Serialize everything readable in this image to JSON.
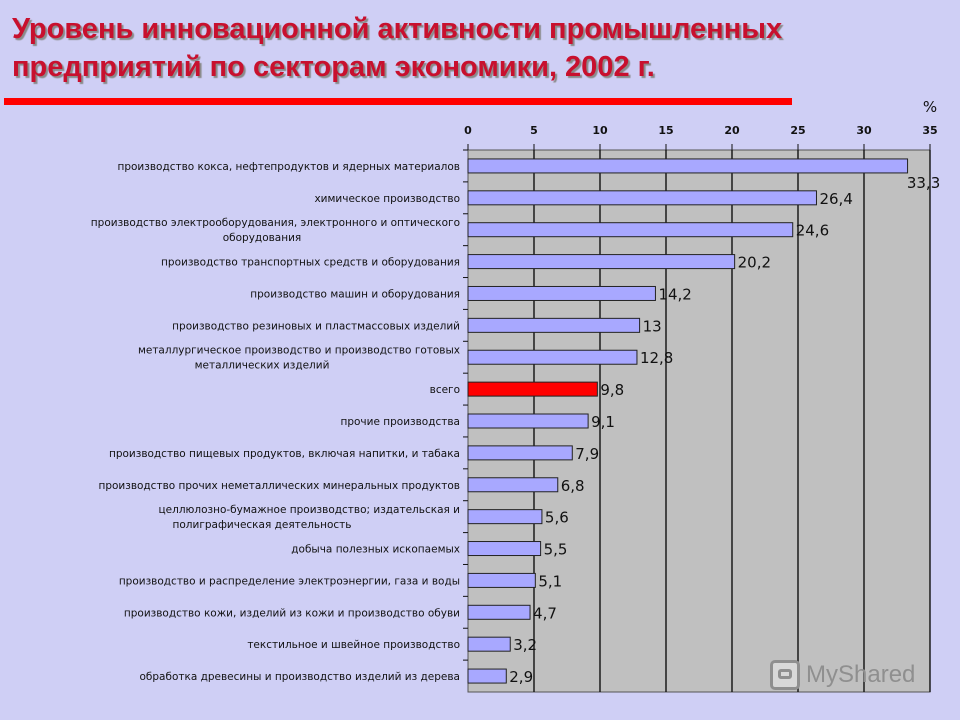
{
  "title_lines": [
    "Уровень инновационной активности  промышленных",
    "предприятий по секторам экономики, 2002 г."
  ],
  "watermark": "MyShared",
  "chart_data": {
    "type": "bar",
    "orientation": "horizontal",
    "unit_label": "%",
    "xlim": [
      0,
      35
    ],
    "ticks": [
      0,
      5,
      10,
      15,
      20,
      25,
      30,
      35
    ],
    "grid": true,
    "bar_color": "#a8a8ff",
    "highlight_color": "#ff0000",
    "categories": [
      {
        "lines": [
          "производство кокса, нефтепродуктов и ядерных материалов"
        ],
        "value": 33.3,
        "value_label": "33,3",
        "highlight": false
      },
      {
        "lines": [
          "химическое производство"
        ],
        "value": 26.4,
        "value_label": "26,4",
        "highlight": false
      },
      {
        "lines": [
          "производство электрооборудования, электронного и оптического",
          "оборудования"
        ],
        "value": 24.6,
        "value_label": "24,6",
        "highlight": false
      },
      {
        "lines": [
          "производство транспортных средств и оборудования"
        ],
        "value": 20.2,
        "value_label": "20,2",
        "highlight": false
      },
      {
        "lines": [
          "производство машин и оборудования"
        ],
        "value": 14.2,
        "value_label": "14,2",
        "highlight": false
      },
      {
        "lines": [
          "производство резиновых и пластмассовых изделий"
        ],
        "value": 13,
        "value_label": "13",
        "highlight": false
      },
      {
        "lines": [
          "металлургическое производство и производство готовых",
          "металлических изделий"
        ],
        "value": 12.8,
        "value_label": "12,8",
        "highlight": false
      },
      {
        "lines": [
          "всего"
        ],
        "value": 9.8,
        "value_label": "9,8",
        "highlight": true
      },
      {
        "lines": [
          "прочие производства"
        ],
        "value": 9.1,
        "value_label": "9,1",
        "highlight": false
      },
      {
        "lines": [
          "производство пищевых продуктов, включая напитки, и табака"
        ],
        "value": 7.9,
        "value_label": "7,9",
        "highlight": false
      },
      {
        "lines": [
          "производство прочих неметаллических минеральных продуктов"
        ],
        "value": 6.8,
        "value_label": "6,8",
        "highlight": false
      },
      {
        "lines": [
          "целлюлозно-бумажное производство; издательская и",
          "полиграфическая деятельность"
        ],
        "value": 5.6,
        "value_label": "5,6",
        "highlight": false
      },
      {
        "lines": [
          "добыча полезных ископаемых"
        ],
        "value": 5.5,
        "value_label": "5,5",
        "highlight": false
      },
      {
        "lines": [
          "производство и распределение электроэнергии, газа и воды"
        ],
        "value": 5.1,
        "value_label": "5,1",
        "highlight": false
      },
      {
        "lines": [
          "производство кожи, изделий из кожи и производство обуви"
        ],
        "value": 4.7,
        "value_label": "4,7",
        "highlight": false
      },
      {
        "lines": [
          "текстильное и швейное производство"
        ],
        "value": 3.2,
        "value_label": "3,2",
        "highlight": false
      },
      {
        "lines": [
          "обработка древесины и производство изделий из дерева"
        ],
        "value": 2.9,
        "value_label": "2,9",
        "highlight": false
      }
    ]
  }
}
